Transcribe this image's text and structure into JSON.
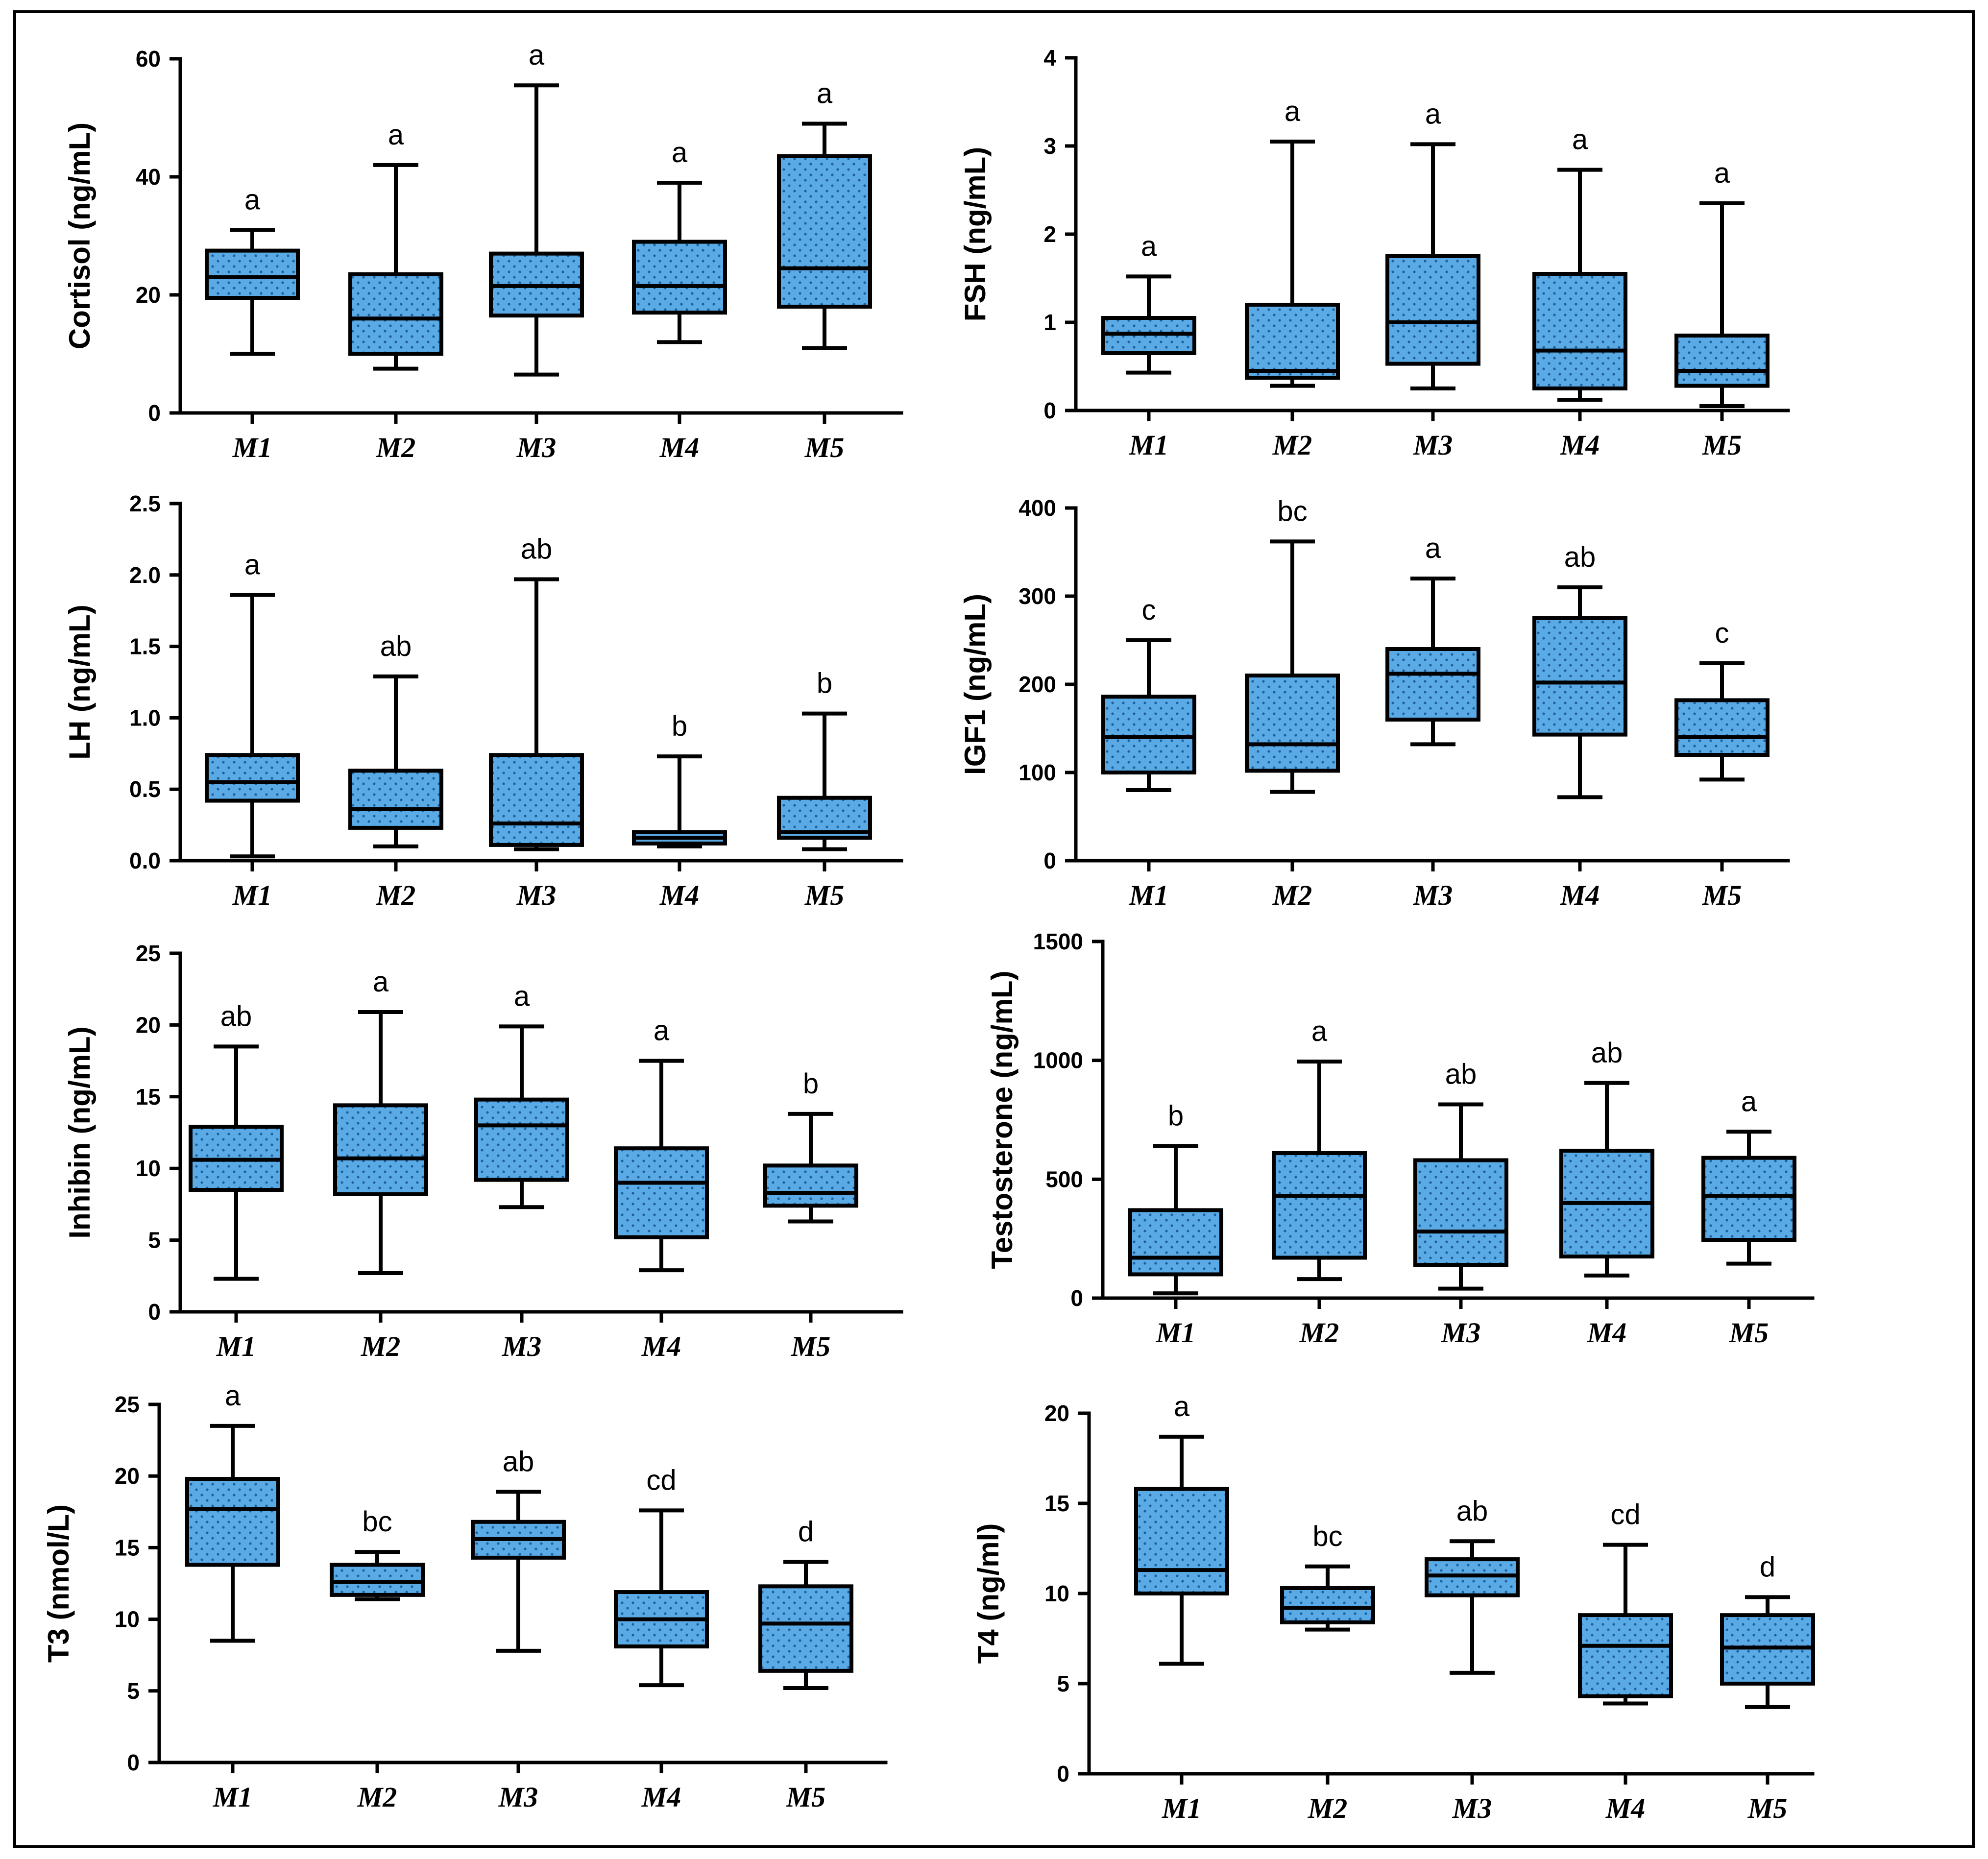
{
  "colors": {
    "box_fill": "#5aaae6",
    "box_dots": "#1f5f9e",
    "stroke": "#000000"
  },
  "chart_data": [
    {
      "id": "cortisol",
      "type": "box",
      "ylabel": "Cortisol (ng/mL)",
      "ylim": [
        0,
        60
      ],
      "yticks": [
        0,
        20,
        40,
        60
      ],
      "ytick_labels": [
        "0",
        "20",
        "40",
        "60"
      ],
      "categories": [
        "M1",
        "M2",
        "M3",
        "M4",
        "M5"
      ],
      "boxes": [
        {
          "min": 10,
          "q1": 19.5,
          "median": 23,
          "q3": 27.5,
          "max": 31
        },
        {
          "min": 7.5,
          "q1": 10,
          "median": 16,
          "q3": 23.5,
          "max": 42
        },
        {
          "min": 6.5,
          "q1": 16.5,
          "median": 21.5,
          "q3": 27,
          "max": 55.5
        },
        {
          "min": 12,
          "q1": 17,
          "median": 21.5,
          "q3": 29,
          "max": 39
        },
        {
          "min": 11,
          "q1": 18,
          "median": 24.5,
          "q3": 43.5,
          "max": 49
        }
      ],
      "letters": [
        "a",
        "a",
        "a",
        "a",
        "a"
      ]
    },
    {
      "id": "fsh",
      "type": "box",
      "ylabel": "FSH (ng/mL)",
      "ylim": [
        0,
        4
      ],
      "yticks": [
        0,
        1,
        2,
        3,
        4
      ],
      "ytick_labels": [
        "0",
        "1",
        "2",
        "3",
        "4"
      ],
      "categories": [
        "M1",
        "M2",
        "M3",
        "M4",
        "M5"
      ],
      "boxes": [
        {
          "min": 0.43,
          "q1": 0.65,
          "median": 0.87,
          "q3": 1.05,
          "max": 1.52
        },
        {
          "min": 0.28,
          "q1": 0.37,
          "median": 0.45,
          "q3": 1.2,
          "max": 3.05
        },
        {
          "min": 0.25,
          "q1": 0.53,
          "median": 1.0,
          "q3": 1.75,
          "max": 3.02
        },
        {
          "min": 0.12,
          "q1": 0.25,
          "median": 0.68,
          "q3": 1.55,
          "max": 2.73
        },
        {
          "min": 0.05,
          "q1": 0.28,
          "median": 0.45,
          "q3": 0.85,
          "max": 2.35
        }
      ],
      "letters": [
        "a",
        "a",
        "a",
        "a",
        "a"
      ]
    },
    {
      "id": "lh",
      "type": "box",
      "ylabel": "LH (ng/mL)",
      "ylim": [
        0,
        2.5
      ],
      "yticks": [
        0,
        0.5,
        1,
        1.5,
        2,
        2.5
      ],
      "ytick_labels": [
        "0.0",
        "0.5",
        "1.0",
        "1.5",
        "2.0",
        "2.5"
      ],
      "categories": [
        "M1",
        "M2",
        "M3",
        "M4",
        "M5"
      ],
      "boxes": [
        {
          "min": 0.03,
          "q1": 0.42,
          "median": 0.55,
          "q3": 0.74,
          "max": 1.86
        },
        {
          "min": 0.1,
          "q1": 0.23,
          "median": 0.36,
          "q3": 0.63,
          "max": 1.29
        },
        {
          "min": 0.08,
          "q1": 0.11,
          "median": 0.26,
          "q3": 0.74,
          "max": 1.97
        },
        {
          "min": 0.1,
          "q1": 0.12,
          "median": 0.16,
          "q3": 0.2,
          "max": 0.73
        },
        {
          "min": 0.08,
          "q1": 0.16,
          "median": 0.2,
          "q3": 0.44,
          "max": 1.03
        }
      ],
      "letters": [
        "a",
        "ab",
        "ab",
        "b",
        "b"
      ]
    },
    {
      "id": "igf1",
      "type": "box",
      "ylabel": "IGF1 (ng/mL)",
      "ylim": [
        0,
        400
      ],
      "yticks": [
        0,
        100,
        200,
        300,
        400
      ],
      "ytick_labels": [
        "0",
        "100",
        "200",
        "300",
        "400"
      ],
      "categories": [
        "M1",
        "M2",
        "M3",
        "M4",
        "M5"
      ],
      "boxes": [
        {
          "min": 80,
          "q1": 100,
          "median": 140,
          "q3": 186,
          "max": 250
        },
        {
          "min": 78,
          "q1": 102,
          "median": 132,
          "q3": 210,
          "max": 362
        },
        {
          "min": 132,
          "q1": 160,
          "median": 212,
          "q3": 240,
          "max": 320
        },
        {
          "min": 72,
          "q1": 143,
          "median": 202,
          "q3": 275,
          "max": 310
        },
        {
          "min": 92,
          "q1": 120,
          "median": 140,
          "q3": 182,
          "max": 224
        }
      ],
      "letters": [
        "c",
        "bc",
        "a",
        "ab",
        "c"
      ]
    },
    {
      "id": "inhibin",
      "type": "box",
      "ylabel": "Inhibin (ng/mL)",
      "ylim": [
        0,
        25
      ],
      "yticks": [
        0,
        5,
        10,
        15,
        20,
        25
      ],
      "ytick_labels": [
        "0",
        "5",
        "10",
        "15",
        "20",
        "25"
      ],
      "categories": [
        "M1",
        "M2",
        "M3",
        "M4",
        "M5"
      ],
      "boxes": [
        {
          "min": 2.3,
          "q1": 8.5,
          "median": 10.6,
          "q3": 12.9,
          "max": 18.5
        },
        {
          "min": 2.7,
          "q1": 8.2,
          "median": 10.7,
          "q3": 14.4,
          "max": 20.9
        },
        {
          "min": 7.3,
          "q1": 9.2,
          "median": 13.0,
          "q3": 14.8,
          "max": 19.9
        },
        {
          "min": 2.9,
          "q1": 5.2,
          "median": 9.0,
          "q3": 11.4,
          "max": 17.5
        },
        {
          "min": 6.3,
          "q1": 7.4,
          "median": 8.3,
          "q3": 10.2,
          "max": 13.8
        }
      ],
      "letters": [
        "ab",
        "a",
        "a",
        "a",
        "b"
      ]
    },
    {
      "id": "testosterone",
      "type": "box",
      "ylabel": "Testosterone (ng/mL)",
      "ylim": [
        0,
        1500
      ],
      "yticks": [
        0,
        500,
        1000,
        1500
      ],
      "ytick_labels": [
        "0",
        "500",
        "1000",
        "1500"
      ],
      "categories": [
        "M1",
        "M2",
        "M3",
        "M4",
        "M5"
      ],
      "boxes": [
        {
          "min": 20,
          "q1": 100,
          "median": 170,
          "q3": 370,
          "max": 640
        },
        {
          "min": 80,
          "q1": 170,
          "median": 430,
          "q3": 610,
          "max": 995
        },
        {
          "min": 40,
          "q1": 140,
          "median": 280,
          "q3": 580,
          "max": 815
        },
        {
          "min": 95,
          "q1": 175,
          "median": 400,
          "q3": 620,
          "max": 905
        },
        {
          "min": 145,
          "q1": 245,
          "median": 430,
          "q3": 590,
          "max": 700
        }
      ],
      "letters": [
        "b",
        "a",
        "ab",
        "ab",
        "a"
      ]
    },
    {
      "id": "t3",
      "type": "box",
      "ylabel": "T3 (nmol/L)",
      "ylim": [
        0,
        25
      ],
      "yticks": [
        0,
        5,
        10,
        15,
        20,
        25
      ],
      "ytick_labels": [
        "0",
        "5",
        "10",
        "15",
        "20",
        "25"
      ],
      "categories": [
        "M1",
        "M2",
        "M3",
        "M4",
        "M5"
      ],
      "boxes": [
        {
          "min": 8.5,
          "q1": 13.8,
          "median": 17.7,
          "q3": 19.8,
          "max": 23.5
        },
        {
          "min": 11.4,
          "q1": 11.7,
          "median": 12.6,
          "q3": 13.8,
          "max": 14.7
        },
        {
          "min": 7.8,
          "q1": 14.3,
          "median": 15.6,
          "q3": 16.8,
          "max": 18.9
        },
        {
          "min": 5.4,
          "q1": 8.1,
          "median": 10.0,
          "q3": 11.9,
          "max": 17.6
        },
        {
          "min": 5.2,
          "q1": 6.4,
          "median": 9.7,
          "q3": 12.3,
          "max": 14.0
        }
      ],
      "letters": [
        "a",
        "bc",
        "ab",
        "cd",
        "d"
      ]
    },
    {
      "id": "t4",
      "type": "box",
      "ylabel": "T4 (ng/ml)",
      "ylim": [
        0,
        20
      ],
      "yticks": [
        0,
        5,
        10,
        15,
        20
      ],
      "ytick_labels": [
        "0",
        "5",
        "10",
        "15",
        "20"
      ],
      "categories": [
        "M1",
        "M2",
        "M3",
        "M4",
        "M5"
      ],
      "boxes": [
        {
          "min": 6.1,
          "q1": 10.0,
          "median": 11.3,
          "q3": 15.8,
          "max": 18.7
        },
        {
          "min": 8.0,
          "q1": 8.4,
          "median": 9.2,
          "q3": 10.3,
          "max": 11.5
        },
        {
          "min": 5.6,
          "q1": 9.9,
          "median": 11.0,
          "q3": 11.9,
          "max": 12.9
        },
        {
          "min": 3.9,
          "q1": 4.3,
          "median": 7.1,
          "q3": 8.8,
          "max": 12.7
        },
        {
          "min": 3.7,
          "q1": 5.0,
          "median": 7.0,
          "q3": 8.8,
          "max": 9.8
        }
      ],
      "letters": [
        "a",
        "bc",
        "ab",
        "cd",
        "d"
      ]
    }
  ]
}
